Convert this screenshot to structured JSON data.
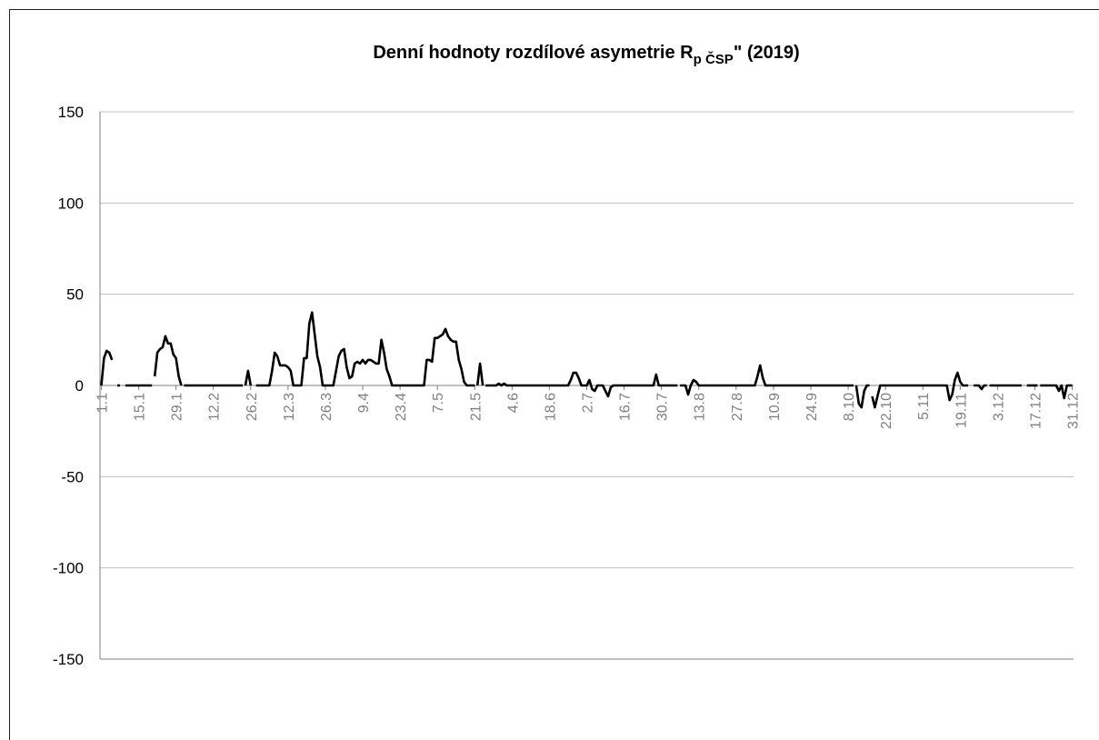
{
  "chart_data": {
    "type": "line",
    "title_main": "Denní hodnoty rozdílové asymetrie R",
    "title_sub": "p ČSP",
    "title_tail": "\" (2019)",
    "ylim": [
      -150,
      150
    ],
    "yticks": [
      150,
      100,
      50,
      0,
      -50,
      -100,
      -150
    ],
    "grid": true,
    "legend": "none",
    "x_day_count": 365,
    "xtick_labels": [
      {
        "day": 1,
        "label": "1.1"
      },
      {
        "day": 15,
        "label": "15.1"
      },
      {
        "day": 29,
        "label": "29.1"
      },
      {
        "day": 43,
        "label": "12.2"
      },
      {
        "day": 57,
        "label": "26.2"
      },
      {
        "day": 71,
        "label": "12.3"
      },
      {
        "day": 85,
        "label": "26.3"
      },
      {
        "day": 99,
        "label": "9.4"
      },
      {
        "day": 113,
        "label": "23.4"
      },
      {
        "day": 127,
        "label": "7.5"
      },
      {
        "day": 141,
        "label": "21.5"
      },
      {
        "day": 155,
        "label": "4.6"
      },
      {
        "day": 169,
        "label": "18.6"
      },
      {
        "day": 183,
        "label": "2.7"
      },
      {
        "day": 197,
        "label": "16.7"
      },
      {
        "day": 211,
        "label": "30.7"
      },
      {
        "day": 225,
        "label": "13.8"
      },
      {
        "day": 239,
        "label": "27.8"
      },
      {
        "day": 253,
        "label": "10.9"
      },
      {
        "day": 267,
        "label": "24.9"
      },
      {
        "day": 281,
        "label": "8.10"
      },
      {
        "day": 295,
        "label": "22.10"
      },
      {
        "day": 309,
        "label": "5.11"
      },
      {
        "day": 323,
        "label": "19.11"
      },
      {
        "day": 337,
        "label": "3.12"
      },
      {
        "day": 351,
        "label": "17.12"
      },
      {
        "day": 365,
        "label": "31.12"
      }
    ],
    "series": [
      {
        "color": "#000000",
        "segments": [
          {
            "x": [
              1,
              2,
              3,
              4,
              5
            ],
            "y": [
              0,
              15,
              19,
              18,
              14
            ]
          },
          {
            "x": [
              7,
              8
            ],
            "y": [
              0,
              0
            ]
          },
          {
            "x": [
              10,
              11,
              12,
              13,
              14,
              15,
              16,
              17,
              18,
              19,
              20
            ],
            "y": [
              0,
              0,
              0,
              0,
              0,
              0,
              0,
              0,
              0,
              0,
              0
            ]
          },
          {
            "x": [
              21,
              22,
              23,
              24,
              25,
              26,
              27,
              28,
              29,
              30,
              31
            ],
            "y": [
              5,
              18,
              20,
              21,
              27,
              23,
              23,
              17,
              15,
              5,
              0
            ]
          },
          {
            "x": [
              32,
              33,
              34,
              35,
              36,
              37,
              38,
              39,
              40,
              41,
              42,
              43,
              44,
              45,
              46,
              47,
              48,
              49,
              50,
              51,
              52,
              53,
              54
            ],
            "y": [
              0,
              0,
              0,
              0,
              0,
              0,
              0,
              0,
              0,
              0,
              0,
              0,
              0,
              0,
              0,
              0,
              0,
              0,
              0,
              0,
              0,
              0,
              0
            ]
          },
          {
            "x": [
              55,
              56,
              57
            ],
            "y": [
              0,
              8,
              0
            ]
          },
          {
            "x": [
              59,
              60,
              61,
              62,
              63,
              64,
              65,
              66,
              67,
              68,
              69,
              70,
              71,
              72,
              73,
              74,
              75,
              76,
              77,
              78,
              79,
              80,
              81,
              82,
              83,
              84,
              85,
              86,
              87,
              88,
              89,
              90,
              91,
              92,
              93,
              94,
              95,
              96,
              97,
              98,
              99,
              100,
              101,
              102,
              103,
              104,
              105,
              106,
              107,
              108,
              109,
              110,
              111,
              112,
              113,
              114,
              115,
              116,
              117,
              118,
              119,
              120,
              121,
              122,
              123,
              124,
              125,
              126,
              127,
              128,
              129,
              130,
              131,
              132,
              133,
              134,
              135,
              136,
              137,
              138,
              139,
              140,
              141
            ],
            "y": [
              0,
              0,
              0,
              0,
              0,
              0,
              8,
              18,
              16,
              11,
              11,
              11,
              10,
              8,
              0,
              0,
              0,
              0,
              15,
              15,
              34,
              40,
              28,
              16,
              10,
              0,
              0,
              0,
              0,
              0,
              8,
              16,
              19,
              20,
              10,
              4,
              5,
              12,
              13,
              12,
              14,
              12,
              14,
              14,
              13,
              12,
              12,
              25,
              18,
              9,
              5,
              0,
              0,
              0,
              0,
              0,
              0,
              0,
              0,
              0,
              0,
              0,
              0,
              0,
              14,
              14,
              13,
              26,
              26,
              27,
              28,
              31,
              27,
              25,
              24,
              24,
              14,
              9,
              2,
              0,
              0,
              0,
              0
            ]
          },
          {
            "x": [
              142,
              143,
              144
            ],
            "y": [
              0,
              12,
              0
            ]
          },
          {
            "x": [
              145,
              146,
              147,
              148,
              149,
              150,
              151,
              152,
              153,
              154,
              155,
              156,
              157,
              158,
              159,
              160,
              161,
              162,
              163,
              164,
              165,
              166,
              167,
              168,
              169,
              170,
              171,
              172,
              173,
              174,
              175,
              176,
              177,
              178,
              179,
              180,
              181,
              182,
              183,
              184,
              185,
              186,
              187,
              188,
              189,
              190,
              191,
              192,
              193,
              194,
              195,
              196,
              197,
              198,
              199,
              200,
              201,
              202,
              203,
              204,
              205,
              206,
              207,
              208,
              209,
              210,
              211,
              212,
              213,
              214,
              215,
              216,
              217
            ],
            "y": [
              0,
              0,
              0,
              0,
              0,
              1,
              0,
              1,
              0,
              0,
              0,
              0,
              0,
              0,
              0,
              0,
              0,
              0,
              0,
              0,
              0,
              0,
              0,
              0,
              0,
              0,
              0,
              0,
              0,
              0,
              0,
              0,
              3,
              7,
              7,
              4,
              0,
              0,
              0,
              3,
              -2,
              -3,
              0,
              0,
              0,
              -3,
              -6,
              -1,
              0,
              0,
              0,
              0,
              0,
              0,
              0,
              0,
              0,
              0,
              0,
              0,
              0,
              0,
              0,
              0,
              6,
              0,
              0,
              0,
              0,
              0,
              0,
              0,
              0
            ]
          },
          {
            "x": [
              218,
              219,
              220,
              221,
              222,
              223,
              224,
              225,
              226,
              227,
              228,
              229,
              230,
              231,
              232,
              233,
              234,
              235,
              236,
              237,
              238,
              239,
              240,
              241,
              242,
              243,
              244,
              245,
              246,
              247,
              248,
              249,
              250,
              251,
              252,
              253,
              254,
              255,
              256,
              257,
              258,
              259,
              260,
              261,
              262,
              263,
              264,
              265,
              266,
              267,
              268,
              269,
              270,
              271,
              272,
              273,
              274,
              275,
              276,
              277,
              278,
              279,
              280,
              281,
              282,
              283
            ],
            "y": [
              0,
              0,
              0,
              -5,
              0,
              3,
              2,
              0,
              0,
              0,
              0,
              0,
              0,
              0,
              0,
              0,
              0,
              0,
              0,
              0,
              0,
              0,
              0,
              0,
              0,
              0,
              0,
              0,
              0,
              5,
              11,
              4,
              0,
              0,
              0,
              0,
              0,
              0,
              0,
              0,
              0,
              0,
              0,
              0,
              0,
              0,
              0,
              0,
              0,
              0,
              0,
              0,
              0,
              0,
              0,
              0,
              0,
              0,
              0,
              0,
              0,
              0,
              0,
              0,
              0,
              0
            ]
          },
          {
            "x": [
              284,
              285,
              286,
              287,
              288,
              289
            ],
            "y": [
              0,
              -10,
              -12,
              -3,
              0,
              0
            ]
          },
          {
            "x": [
              290,
              291,
              292,
              293,
              294,
              295,
              296,
              297,
              298,
              299,
              300,
              301,
              302,
              303,
              304,
              305,
              306,
              307,
              308,
              309,
              310,
              311,
              312,
              313,
              314,
              315,
              316,
              317,
              318,
              319,
              320,
              321,
              322,
              323,
              324,
              325,
              326
            ],
            "y": [
              -6,
              -12,
              -6,
              0,
              0,
              0,
              0,
              0,
              0,
              0,
              0,
              0,
              0,
              0,
              0,
              0,
              0,
              0,
              0,
              0,
              0,
              0,
              0,
              0,
              0,
              0,
              0,
              0,
              0,
              -8,
              -5,
              3,
              7,
              2,
              0,
              0,
              0
            ]
          },
          {
            "x": [
              328,
              329,
              330,
              331,
              332,
              333
            ],
            "y": [
              0,
              0,
              0,
              -2,
              0,
              0
            ]
          },
          {
            "x": [
              334,
              335,
              336,
              337,
              338,
              339,
              340,
              341,
              342,
              343,
              344,
              345,
              346
            ],
            "y": [
              0,
              0,
              0,
              0,
              0,
              0,
              0,
              0,
              0,
              0,
              0,
              0,
              0
            ]
          },
          {
            "x": [
              348,
              349,
              350,
              351,
              352
            ],
            "y": [
              0,
              0,
              0,
              0,
              0
            ]
          },
          {
            "x": [
              353,
              354,
              355,
              356,
              357,
              358,
              359,
              360,
              361,
              362,
              363,
              364,
              365
            ],
            "y": [
              0,
              0,
              0,
              0,
              0,
              0,
              0,
              -3,
              0,
              -7,
              0,
              0,
              0
            ]
          }
        ]
      }
    ]
  }
}
